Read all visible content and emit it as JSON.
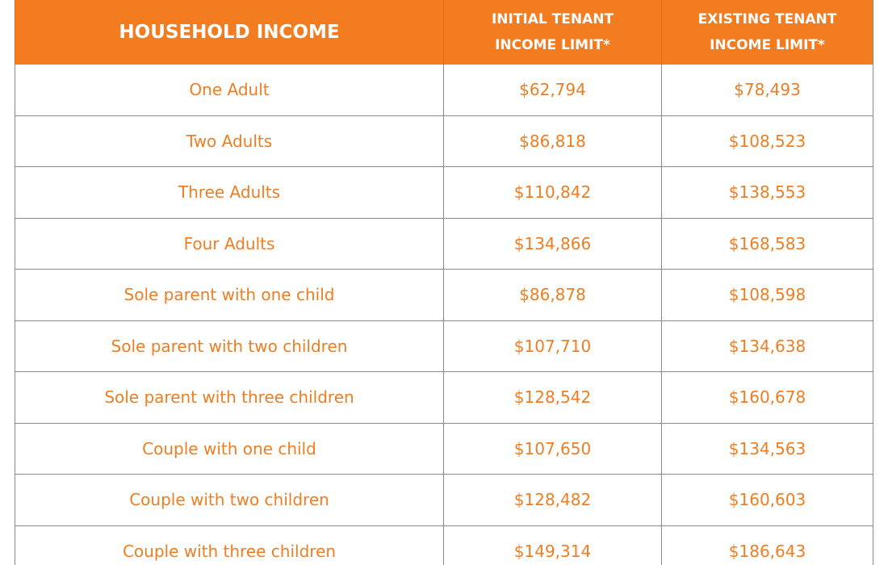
{
  "table": {
    "columns": [
      "HOUSEHOLD INCOME",
      "INITIAL TENANT INCOME LIMIT*",
      "EXISTING TENANT INCOME LIMIT*"
    ],
    "rows": [
      [
        "One Adult",
        "$62,794",
        "$78,493"
      ],
      [
        "Two Adults",
        "$86,818",
        "$108,523"
      ],
      [
        "Three Adults",
        "$110,842",
        "$138,553"
      ],
      [
        "Four Adults",
        "$134,866",
        "$168,583"
      ],
      [
        "Sole parent with one child",
        "$86,878",
        "$108,598"
      ],
      [
        "Sole parent with two children",
        "$107,710",
        "$134,638"
      ],
      [
        "Sole parent with three children",
        "$128,542",
        "$160,678"
      ],
      [
        "Couple with one child",
        "$107,650",
        "$134,563"
      ],
      [
        "Couple with two children",
        "$128,482",
        "$160,603"
      ],
      [
        "Couple with three children",
        "$149,314",
        "$186,643"
      ]
    ]
  }
}
